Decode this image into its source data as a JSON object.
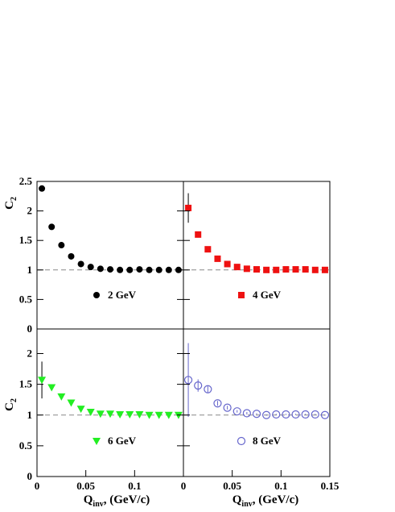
{
  "chart_data": {
    "type": "scatter",
    "layout": "2x2 panels, shared axes",
    "xlabel_main": "Q",
    "xlabel_sub": "inv",
    "xlabel_tail": ", (GeV/c)",
    "ylabel_main": "C",
    "ylabel_sub": "2",
    "xlim": [
      0,
      0.15
    ],
    "ylim": [
      0,
      2.5
    ],
    "baseline": 1,
    "left_x_ticks": [
      "0",
      "0.05",
      "0.1"
    ],
    "right_x_ticks": [
      "0",
      "0.05",
      "0.1",
      "0.15"
    ],
    "top_y_ticks": [
      "0",
      "0.5",
      "1",
      "1.5",
      "2",
      "2.5"
    ],
    "bottom_y_ticks": [
      "0",
      "0.5",
      "1",
      "1.5",
      "2"
    ],
    "panels": [
      {
        "name": "2 GeV",
        "marker": "filled-circle",
        "color": "#000000",
        "points": [
          {
            "x": 0.005,
            "y": 2.38,
            "err": 0.05
          },
          {
            "x": 0.015,
            "y": 1.73,
            "err": 0.03
          },
          {
            "x": 0.025,
            "y": 1.42,
            "err": 0.02
          },
          {
            "x": 0.035,
            "y": 1.23,
            "err": 0.02
          },
          {
            "x": 0.045,
            "y": 1.1,
            "err": 0.01
          },
          {
            "x": 0.055,
            "y": 1.05,
            "err": 0.01
          },
          {
            "x": 0.065,
            "y": 1.02,
            "err": 0.01
          },
          {
            "x": 0.075,
            "y": 1.01,
            "err": 0.01
          },
          {
            "x": 0.085,
            "y": 1.0,
            "err": 0.01
          },
          {
            "x": 0.095,
            "y": 1.0,
            "err": 0.01
          },
          {
            "x": 0.105,
            "y": 1.01,
            "err": 0.01
          },
          {
            "x": 0.115,
            "y": 1.0,
            "err": 0.01
          },
          {
            "x": 0.125,
            "y": 1.0,
            "err": 0.01
          },
          {
            "x": 0.135,
            "y": 1.0,
            "err": 0.01
          },
          {
            "x": 0.145,
            "y": 1.0,
            "err": 0.01
          }
        ]
      },
      {
        "name": "4 GeV",
        "marker": "filled-square",
        "color": "#ee1111",
        "points": [
          {
            "x": 0.005,
            "y": 2.05,
            "err": 0.25
          },
          {
            "x": 0.015,
            "y": 1.6,
            "err": 0.05
          },
          {
            "x": 0.025,
            "y": 1.35,
            "err": 0.03
          },
          {
            "x": 0.035,
            "y": 1.19,
            "err": 0.02
          },
          {
            "x": 0.045,
            "y": 1.1,
            "err": 0.02
          },
          {
            "x": 0.055,
            "y": 1.05,
            "err": 0.01
          },
          {
            "x": 0.065,
            "y": 1.02,
            "err": 0.01
          },
          {
            "x": 0.075,
            "y": 1.01,
            "err": 0.01
          },
          {
            "x": 0.085,
            "y": 1.0,
            "err": 0.01
          },
          {
            "x": 0.095,
            "y": 1.0,
            "err": 0.01
          },
          {
            "x": 0.105,
            "y": 1.01,
            "err": 0.01
          },
          {
            "x": 0.115,
            "y": 1.01,
            "err": 0.01
          },
          {
            "x": 0.125,
            "y": 1.01,
            "err": 0.01
          },
          {
            "x": 0.135,
            "y": 1.0,
            "err": 0.01
          },
          {
            "x": 0.145,
            "y": 1.0,
            "err": 0.01
          }
        ]
      },
      {
        "name": "6 GeV",
        "marker": "filled-triangle-down",
        "color": "#22ee22",
        "points": [
          {
            "x": 0.005,
            "y": 1.57,
            "err": 0.3
          },
          {
            "x": 0.015,
            "y": 1.45,
            "err": 0.05
          },
          {
            "x": 0.025,
            "y": 1.3,
            "err": 0.03
          },
          {
            "x": 0.035,
            "y": 1.2,
            "err": 0.02
          },
          {
            "x": 0.045,
            "y": 1.1,
            "err": 0.02
          },
          {
            "x": 0.055,
            "y": 1.05,
            "err": 0.01
          },
          {
            "x": 0.065,
            "y": 1.02,
            "err": 0.01
          },
          {
            "x": 0.075,
            "y": 1.02,
            "err": 0.01
          },
          {
            "x": 0.085,
            "y": 1.01,
            "err": 0.01
          },
          {
            "x": 0.095,
            "y": 1.01,
            "err": 0.01
          },
          {
            "x": 0.105,
            "y": 1.01,
            "err": 0.01
          },
          {
            "x": 0.115,
            "y": 1.0,
            "err": 0.01
          },
          {
            "x": 0.125,
            "y": 1.0,
            "err": 0.01
          },
          {
            "x": 0.135,
            "y": 1.0,
            "err": 0.01
          },
          {
            "x": 0.145,
            "y": 1.0,
            "err": 0.01
          }
        ]
      },
      {
        "name": "8 GeV",
        "marker": "open-circle",
        "color": "#6666cc",
        "points": [
          {
            "x": 0.005,
            "y": 1.57,
            "err": 0.6
          },
          {
            "x": 0.015,
            "y": 1.48,
            "err": 0.1
          },
          {
            "x": 0.025,
            "y": 1.42,
            "err": 0.05
          },
          {
            "x": 0.035,
            "y": 1.19,
            "err": 0.04
          },
          {
            "x": 0.045,
            "y": 1.12,
            "err": 0.03
          },
          {
            "x": 0.055,
            "y": 1.06,
            "err": 0.02
          },
          {
            "x": 0.065,
            "y": 1.03,
            "err": 0.02
          },
          {
            "x": 0.075,
            "y": 1.02,
            "err": 0.01
          },
          {
            "x": 0.085,
            "y": 1.0,
            "err": 0.01
          },
          {
            "x": 0.095,
            "y": 1.01,
            "err": 0.01
          },
          {
            "x": 0.105,
            "y": 1.01,
            "err": 0.01
          },
          {
            "x": 0.115,
            "y": 1.01,
            "err": 0.01
          },
          {
            "x": 0.125,
            "y": 1.01,
            "err": 0.01
          },
          {
            "x": 0.135,
            "y": 1.01,
            "err": 0.01
          },
          {
            "x": 0.145,
            "y": 1.0,
            "err": 0.01
          }
        ]
      }
    ]
  }
}
